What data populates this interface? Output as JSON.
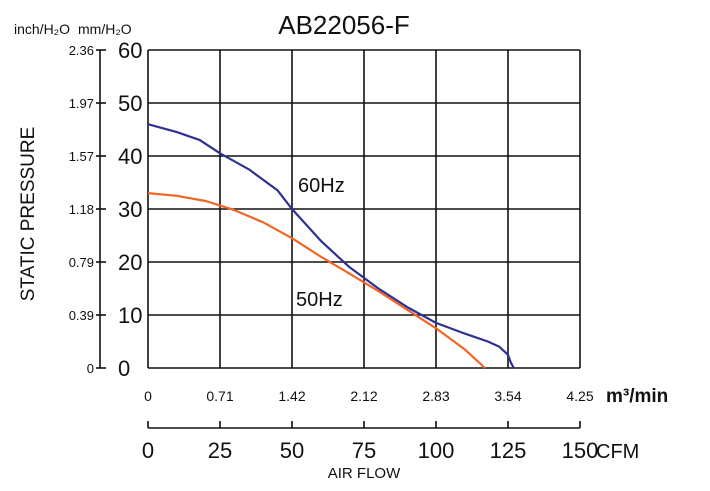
{
  "chart_data": {
    "type": "line",
    "title": "AB22056-F",
    "ylabel": "STATIC PRESSURE",
    "xlabel": "AIR FLOW",
    "y_unit_left": "inch/H₂O",
    "y_unit_right": "mm/H₂O",
    "y_ticks_mm": [
      "60",
      "50",
      "40",
      "30",
      "20",
      "10",
      "0"
    ],
    "y_ticks_inch": [
      "2.36",
      "1.97",
      "1.57",
      "1.18",
      "0.79",
      "0.39",
      "0"
    ],
    "x_ticks_m3": [
      "0",
      "0.71",
      "1.42",
      "2.12",
      "2.83",
      "3.54",
      "4.25"
    ],
    "x_unit_m3": "m³/min",
    "x_ticks_cfm": [
      "0",
      "25",
      "50",
      "75",
      "100",
      "125",
      "150"
    ],
    "x_unit_cfm": "CFM",
    "xlim": [
      0,
      150
    ],
    "ylim": [
      0,
      60
    ],
    "grid": true,
    "series": [
      {
        "name": "60Hz",
        "color": "#2e3192",
        "x": [
          0,
          10,
          18,
          25,
          35,
          45,
          50,
          60,
          70,
          80,
          90,
          100,
          110,
          118,
          122,
          125,
          126,
          127
        ],
        "y": [
          46,
          44.5,
          43,
          40.5,
          37.5,
          33.5,
          30,
          24,
          19,
          15,
          11.5,
          8.5,
          6.5,
          5,
          4,
          2.5,
          1,
          0
        ]
      },
      {
        "name": "50Hz",
        "color": "#f26522",
        "x": [
          0,
          10,
          20,
          30,
          40,
          50,
          60,
          70,
          80,
          90,
          100,
          110,
          117
        ],
        "y": [
          33,
          32.5,
          31.5,
          29.8,
          27.5,
          24.5,
          21,
          17.8,
          14.5,
          11,
          7.5,
          3.5,
          0
        ]
      }
    ]
  }
}
